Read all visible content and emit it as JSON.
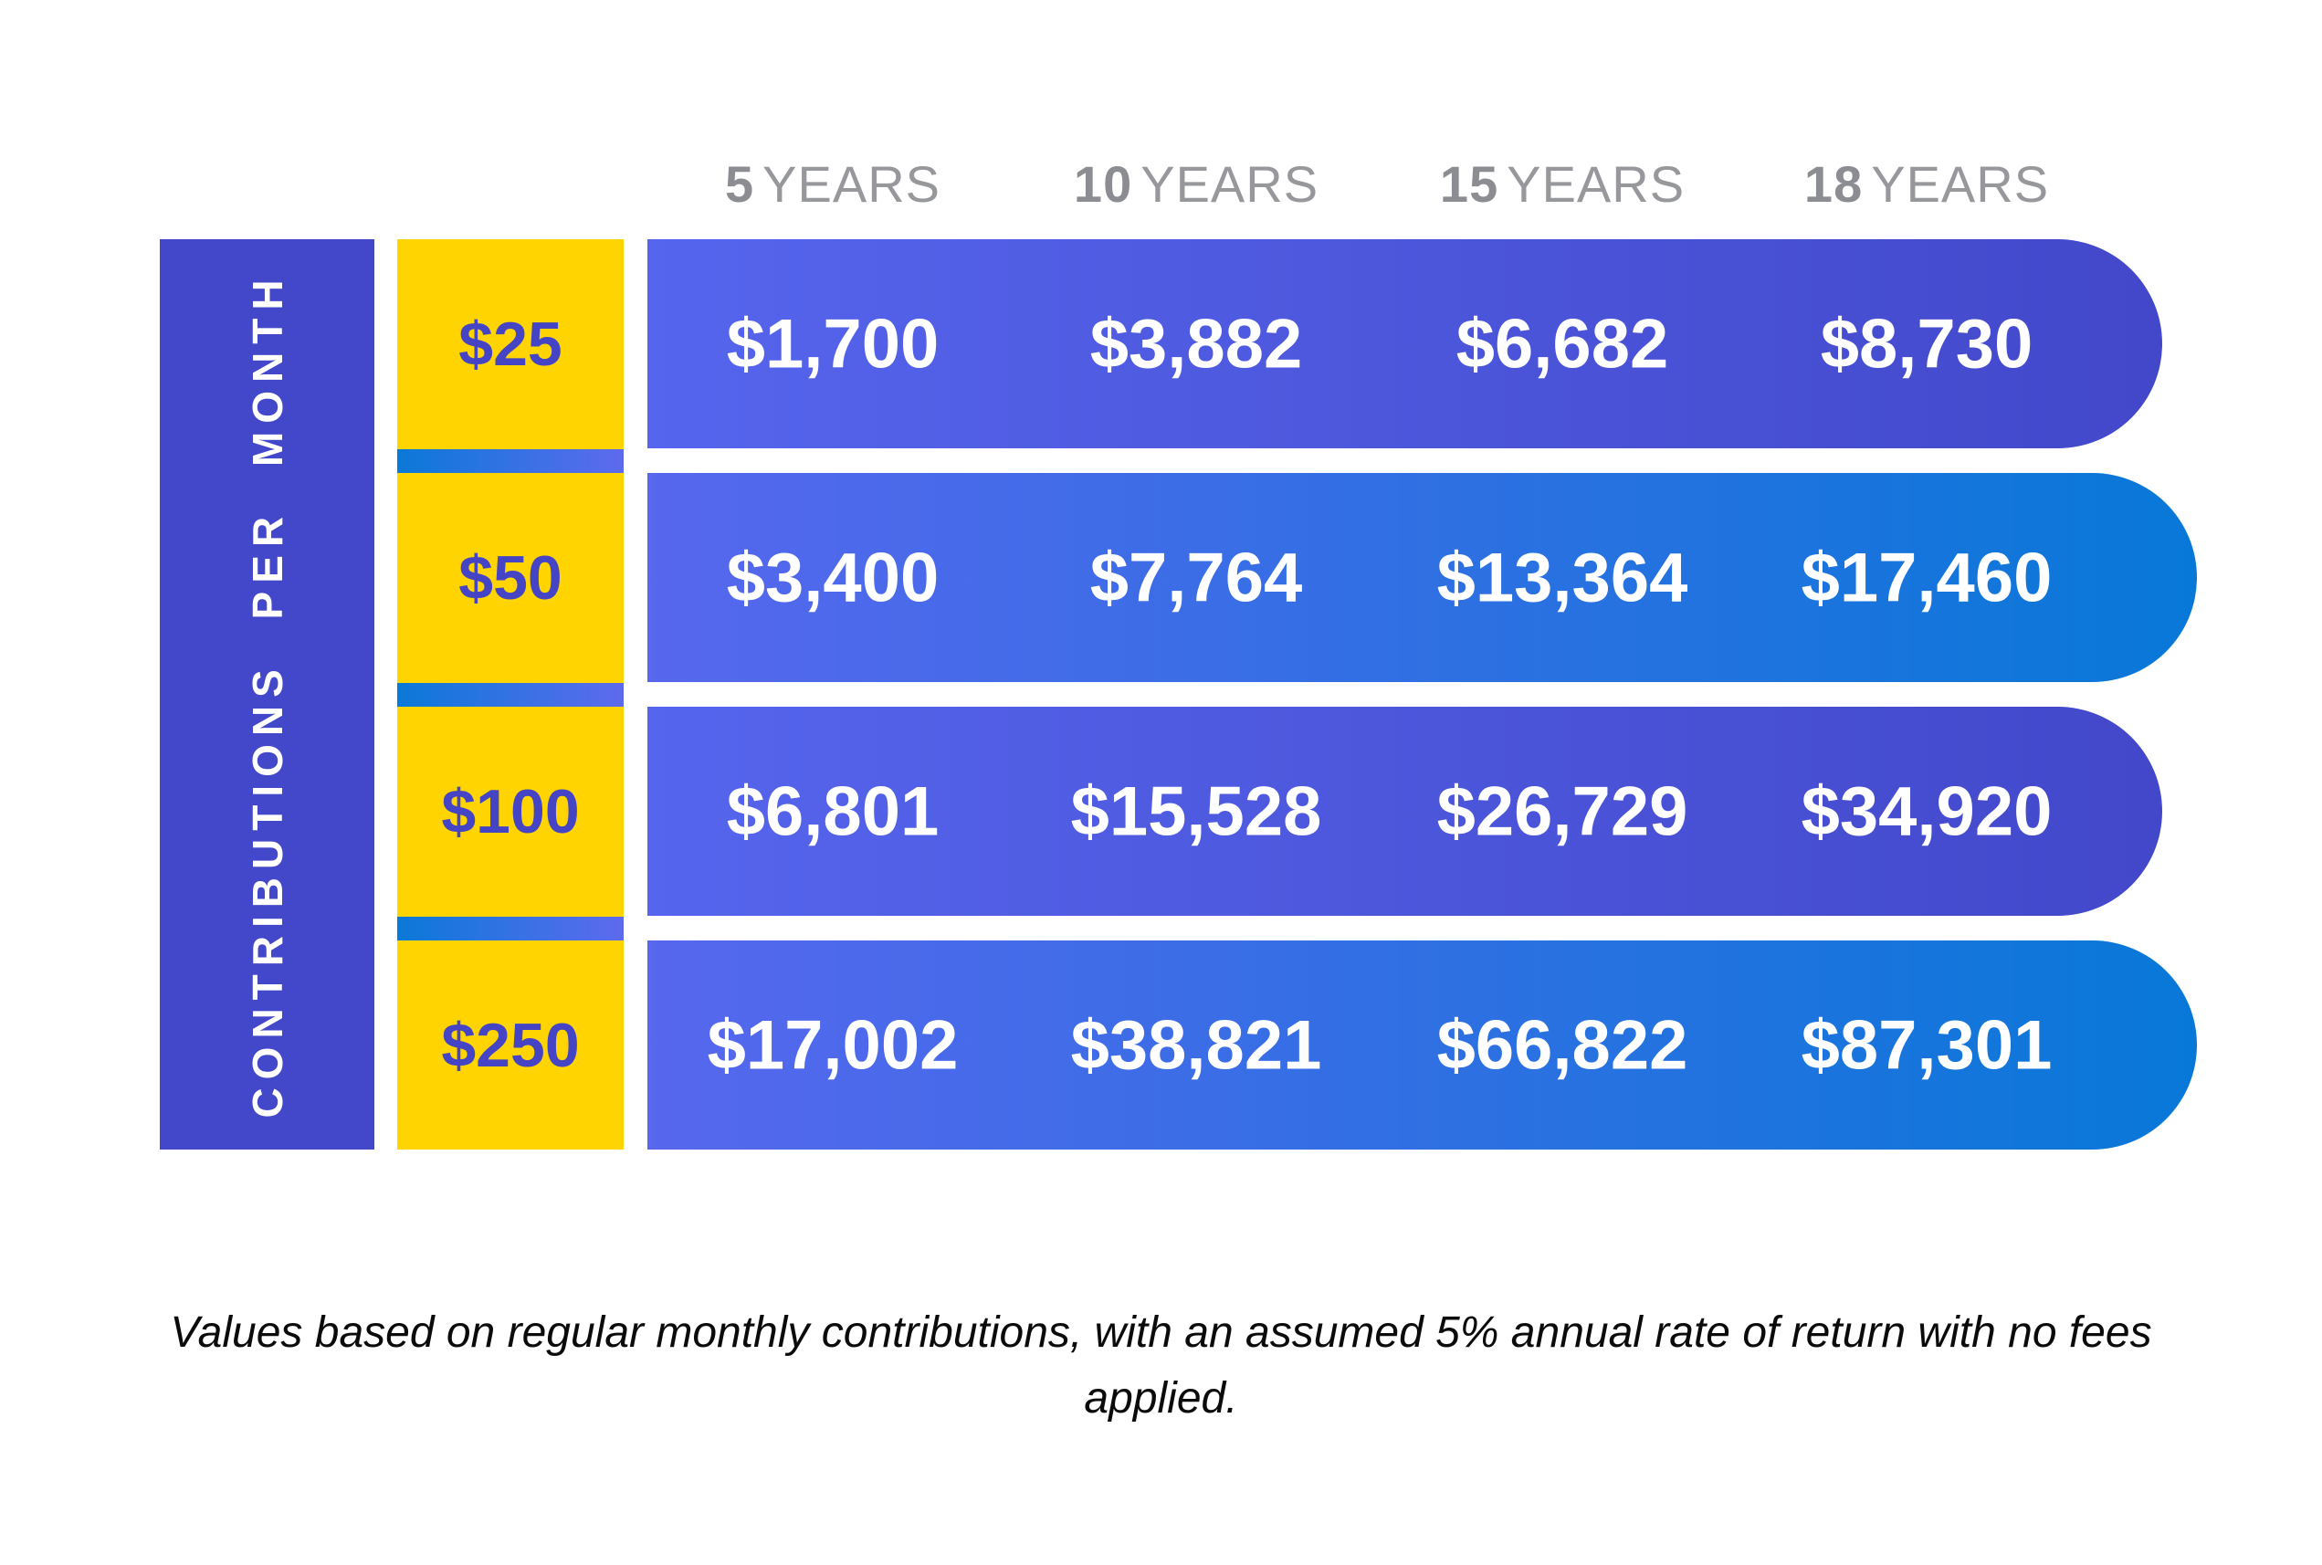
{
  "display": {
    "columns": [
      {
        "num": "5",
        "unit": "YEARS"
      },
      {
        "num": "10",
        "unit": "YEARS"
      },
      {
        "num": "15",
        "unit": "YEARS"
      },
      {
        "num": "18",
        "unit": "YEARS"
      }
    ],
    "axis_label": "CONTRIBUTIONS PER MONTH",
    "rows": [
      {
        "label": "$25",
        "values": [
          "$1,700",
          "$3,882",
          "$6,682",
          "$8,730"
        ]
      },
      {
        "label": "$50",
        "values": [
          "$3,400",
          "$7,764",
          "$13,364",
          "$17,460"
        ]
      },
      {
        "label": "$100",
        "values": [
          "$6,801",
          "$15,528",
          "$26,729",
          "$34,920"
        ]
      },
      {
        "label": "$250",
        "values": [
          "$17,002",
          "$38,821",
          "$66,822",
          "$87,301"
        ]
      }
    ],
    "footnote": "Values based on regular monthly contributions, with an assumed 5% annual rate of return with no fees applied."
  },
  "colors": {
    "indigo_bar": "#4347c9",
    "pill_gradient_start_purple": "#5565ed",
    "pill_gradient_end_indigo": "#4348ca",
    "pill_gradient_end_azure": "#0878d8",
    "divider_gradient": [
      "#0a79d8",
      "#5e6aee"
    ],
    "yellow_column": "#ffd400",
    "row_label_text": "#4444c4",
    "header_gray": "#97989c",
    "value_text": "#ffffff",
    "footnote_text": "#0b0b0c"
  },
  "chart_data": {
    "type": "table",
    "title": "",
    "row_axis_label": "CONTRIBUTIONS PER MONTH",
    "columns": [
      "5 YEARS",
      "10 YEARS",
      "15 YEARS",
      "18 YEARS"
    ],
    "rows": [
      {
        "contribution_per_month": 25,
        "values": [
          1700,
          3882,
          6682,
          8730
        ]
      },
      {
        "contribution_per_month": 50,
        "values": [
          3400,
          7764,
          13364,
          17460
        ]
      },
      {
        "contribution_per_month": 100,
        "values": [
          6801,
          15528,
          26729,
          34920
        ]
      },
      {
        "contribution_per_month": 250,
        "values": [
          17002,
          38821,
          66822,
          87301
        ]
      }
    ],
    "note": "Values based on regular monthly contributions, with an assumed 5% annual rate of return with no fees applied.",
    "layout_hints": {
      "row_gradient_ends": [
        "indigo",
        "azure",
        "indigo",
        "azure"
      ],
      "grid": false,
      "legend": false
    }
  }
}
